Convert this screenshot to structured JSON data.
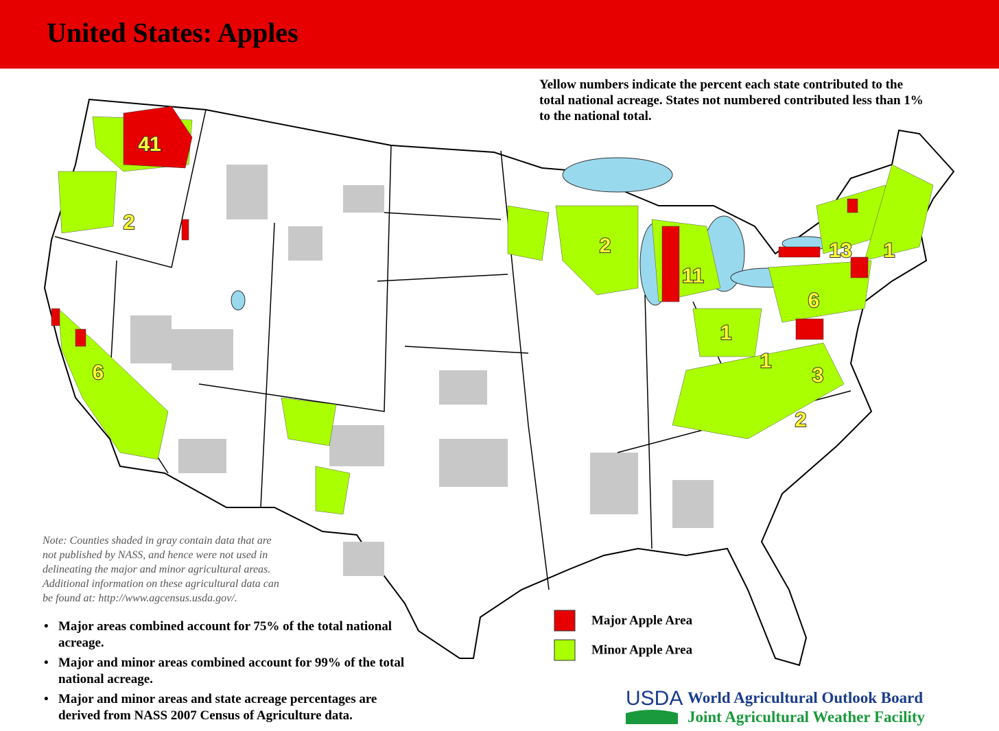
{
  "header": {
    "title": "United States:  Apples"
  },
  "intro": "Yellow numbers indicate the percent each state contributed to the total national acreage.  States not numbered contributed less than 1% to the national total.",
  "state_labels": [
    41,
    2,
    6,
    2,
    11,
    13,
    1,
    6,
    1,
    1,
    3,
    2
  ],
  "note": [
    "Note:  Counties shaded in gray contain data that are",
    "not published by NASS, and hence were not used in",
    "delineating the major and minor agricultural areas.",
    "Additional information on these agricultural data can",
    "be found at:  http://www.agcensus.usda.gov/."
  ],
  "bullets": [
    "Major areas combined account for 75% of the total national acreage.",
    "Major and minor areas combined account for 99% of the total national acreage.",
    "Major and minor areas and state acreage percentages are derived from NASS 2007 Census of Agriculture data."
  ],
  "legend": [
    {
      "label": "Major Apple Area",
      "color": "#e60000"
    },
    {
      "label": "Minor Apple Area",
      "color": "#aaff00"
    }
  ],
  "footer": {
    "logo": "USDA",
    "lines": [
      "World Agricultural Outlook Board",
      "Joint Agricultural Weather Facility"
    ]
  }
}
